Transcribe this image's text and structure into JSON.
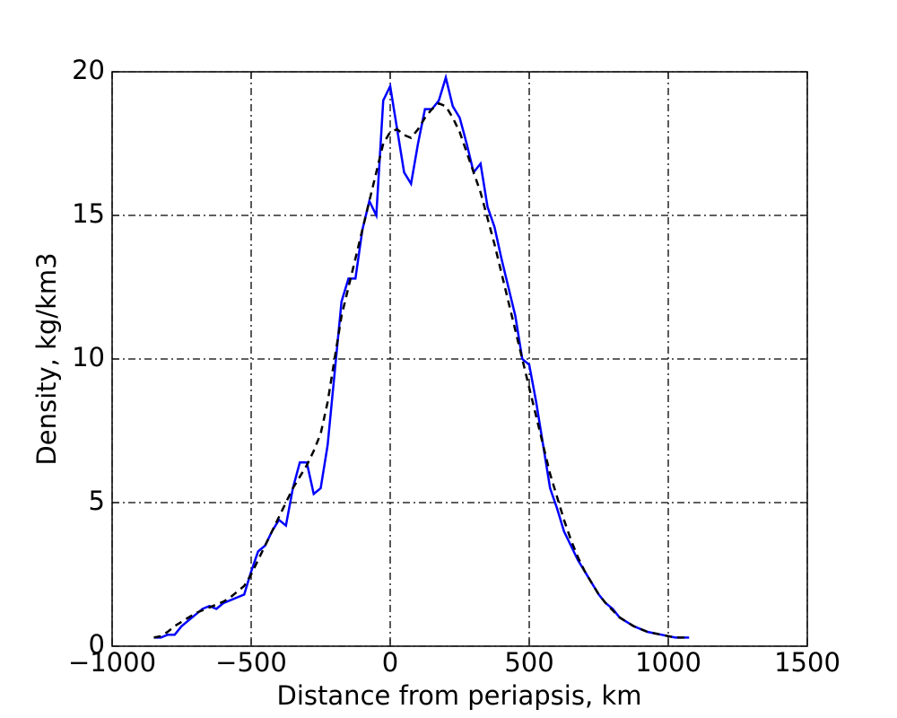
{
  "chart_data": {
    "type": "line",
    "x_label": "Distance from periapsis, km",
    "y_label": "Density, kg/km3",
    "x": [
      -850,
      -825,
      -800,
      -775,
      -750,
      -725,
      -700,
      -675,
      -650,
      -625,
      -600,
      -575,
      -550,
      -525,
      -500,
      -475,
      -450,
      -425,
      -400,
      -375,
      -350,
      -325,
      -300,
      -275,
      -250,
      -225,
      -200,
      -175,
      -150,
      -125,
      -100,
      -75,
      -50,
      -25,
      0,
      25,
      50,
      75,
      100,
      125,
      150,
      175,
      200,
      225,
      250,
      275,
      300,
      325,
      350,
      375,
      400,
      425,
      450,
      475,
      500,
      525,
      550,
      575,
      600,
      625,
      650,
      675,
      700,
      725,
      750,
      775,
      800,
      825,
      850,
      875,
      900,
      925,
      950,
      975,
      1000,
      1025,
      1050,
      1075
    ],
    "series": [
      {
        "color": "#0000ff",
        "dash": "solid",
        "values": [
          0.3,
          0.3,
          0.4,
          0.4,
          0.7,
          0.9,
          1.1,
          1.3,
          1.4,
          1.3,
          1.5,
          1.6,
          1.7,
          1.8,
          2.6,
          3.3,
          3.5,
          4.0,
          4.4,
          4.2,
          5.5,
          6.4,
          6.4,
          5.3,
          5.5,
          7.0,
          9.5,
          12.0,
          12.8,
          12.8,
          14.5,
          15.5,
          15.0,
          19.0,
          19.5,
          18.0,
          16.5,
          16.1,
          17.5,
          18.7,
          18.7,
          19.0,
          19.8,
          18.8,
          18.4,
          17.5,
          16.5,
          16.8,
          15.3,
          14.6,
          13.5,
          12.5,
          11.5,
          10.0,
          9.8,
          8.5,
          7.0,
          5.5,
          4.8,
          4.0,
          3.5,
          3.0,
          2.6,
          2.2,
          1.8,
          1.5,
          1.3,
          1.0,
          0.85,
          0.7,
          0.6,
          0.5,
          0.45,
          0.4,
          0.35,
          0.3,
          0.3,
          0.3
        ]
      },
      {
        "color": "#000000",
        "dash": "dashed",
        "values": [
          0.3,
          0.35,
          0.5,
          0.7,
          0.85,
          1.0,
          1.15,
          1.25,
          1.35,
          1.45,
          1.55,
          1.7,
          1.9,
          2.1,
          2.5,
          3.0,
          3.5,
          4.0,
          4.5,
          5.0,
          5.5,
          5.9,
          6.3,
          6.8,
          7.4,
          8.5,
          10.0,
          11.5,
          12.5,
          13.5,
          14.5,
          15.5,
          16.5,
          17.5,
          17.9,
          18.0,
          17.8,
          17.7,
          18.0,
          18.4,
          18.7,
          18.9,
          18.8,
          18.4,
          17.9,
          17.2,
          16.5,
          15.8,
          14.9,
          14.0,
          13.0,
          12.0,
          11.0,
          10.0,
          9.0,
          8.0,
          7.0,
          6.0,
          5.2,
          4.4,
          3.7,
          3.1,
          2.6,
          2.2,
          1.8,
          1.5,
          1.25,
          1.0,
          0.85,
          0.7,
          0.6,
          0.5,
          0.45,
          0.4,
          0.35,
          0.3,
          0.3,
          0.3
        ]
      }
    ],
    "xlim": [
      -1000,
      1500
    ],
    "xticks": [
      {
        "value": -1000,
        "label": "−1000"
      },
      {
        "value": -500,
        "label": "−500"
      },
      0,
      500,
      1000,
      1500
    ],
    "ylim": [
      0,
      20
    ],
    "yticks": [
      0,
      5,
      10,
      15,
      20
    ],
    "grid": true
  }
}
